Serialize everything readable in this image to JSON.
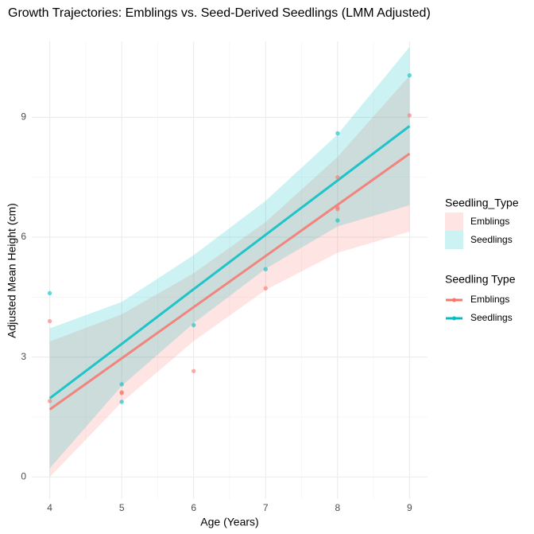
{
  "chart_data": {
    "type": "line",
    "title": "Growth Trajectories: Emblings vs. Seed-Derived Seedlings (LMM Adjusted)",
    "x_label": "Age (Years)",
    "y_label": "Adjusted Mean Height (cm)",
    "xlim": [
      3.75,
      9.25
    ],
    "xticks": [
      4,
      5,
      6,
      7,
      8,
      9
    ],
    "ylim": [
      -0.55,
      10.9
    ],
    "yticks": [
      0,
      3,
      6,
      9
    ],
    "grid": true,
    "legend_titles": [
      "Seedling_Type",
      "Seedling Type"
    ],
    "series": [
      {
        "name": "Emblings",
        "color": "#F8766D",
        "x": [
          4,
          5,
          6,
          7,
          8,
          9
        ],
        "values": [
          1.69,
          2.97,
          4.25,
          5.53,
          6.81,
          8.09
        ],
        "lower": [
          0.0,
          1.87,
          3.4,
          4.68,
          5.61,
          6.14
        ],
        "upper": [
          3.39,
          4.07,
          5.1,
          6.38,
          8.01,
          10.04
        ],
        "points_x": [
          4,
          4,
          5,
          5,
          6,
          7,
          8,
          8,
          8,
          9
        ],
        "points_y": [
          3.9,
          1.9,
          2.1,
          2.12,
          2.65,
          4.72,
          7.5,
          6.7,
          6.75,
          9.05
        ]
      },
      {
        "name": "Seedlings",
        "color": "#00BFC4",
        "x": [
          4,
          5,
          6,
          7,
          8,
          9
        ],
        "values": [
          1.97,
          3.33,
          4.7,
          6.06,
          7.42,
          8.78
        ],
        "lower": [
          0.22,
          2.28,
          3.85,
          5.21,
          6.27,
          6.8
        ],
        "upper": [
          3.72,
          4.38,
          5.55,
          6.91,
          8.57,
          10.76
        ],
        "points_x": [
          4,
          5,
          5,
          6,
          7,
          8,
          8,
          9
        ],
        "points_y": [
          4.6,
          2.32,
          1.88,
          3.8,
          5.2,
          8.6,
          6.42,
          10.05
        ]
      }
    ]
  }
}
